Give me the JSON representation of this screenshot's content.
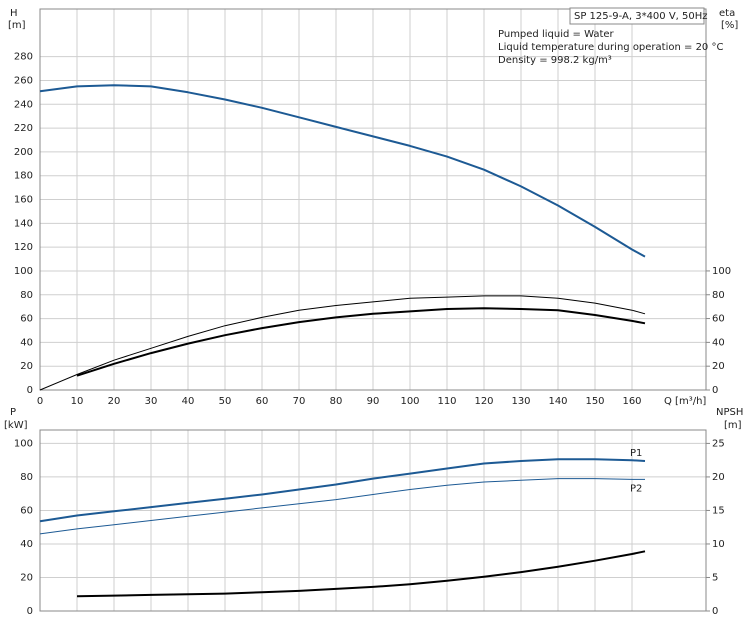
{
  "chart_data": [
    {
      "type": "line",
      "title": "SP 125-9-A, 3*400 V, 50Hz",
      "annotations": [
        "Pumped liquid = Water",
        "Liquid temperature during operation = 20 °C",
        "Density = 998.2 kg/m³"
      ],
      "ylabel": "H",
      "yunit": "[m]",
      "y2label": "eta",
      "y2unit": "[%]",
      "xlabel": "Q [m³/h]",
      "x": [
        0,
        10,
        20,
        30,
        40,
        50,
        60,
        70,
        80,
        90,
        100,
        110,
        120,
        130,
        140,
        150,
        160,
        163.5
      ],
      "xlim": [
        0,
        180
      ],
      "xticks": [
        0,
        10,
        20,
        30,
        40,
        50,
        60,
        70,
        80,
        90,
        100,
        110,
        120,
        130,
        140,
        150,
        160
      ],
      "ylim": [
        0,
        320
      ],
      "yticks": [
        0,
        20,
        40,
        60,
        80,
        100,
        120,
        140,
        160,
        180,
        200,
        220,
        240,
        260,
        280
      ],
      "y2lim": [
        0,
        320
      ],
      "y2ticks": [
        0,
        20,
        40,
        60,
        80,
        100
      ],
      "grid": true,
      "series": [
        {
          "color": "#1d5a94",
          "line_width": 2,
          "values": [
            251,
            255,
            256,
            255,
            250,
            244,
            237,
            229,
            221,
            213,
            205,
            196,
            185,
            171,
            155,
            137,
            118,
            112
          ]
        },
        {
          "color": "#000000",
          "line_width": 1,
          "axis": "y2",
          "values": [
            0,
            13,
            25,
            35,
            45,
            54,
            61,
            67,
            71,
            74,
            77,
            78,
            79,
            79,
            77,
            73,
            67,
            64
          ]
        },
        {
          "color": "#000000",
          "line_width": 2,
          "axis": "y2",
          "values": [
            null,
            12,
            22,
            31,
            39,
            46,
            52,
            57,
            61,
            64,
            66,
            68,
            68.7,
            68,
            67,
            63,
            58,
            56
          ]
        }
      ]
    },
    {
      "type": "line",
      "ylabel": "P",
      "yunit": "[kW]",
      "y2label": "NPSH",
      "y2unit": "[m]",
      "x": [
        0,
        10,
        20,
        30,
        40,
        50,
        60,
        70,
        80,
        90,
        100,
        110,
        120,
        130,
        140,
        150,
        160,
        163.5
      ],
      "xlim": [
        0,
        180
      ],
      "ylim": [
        0,
        108
      ],
      "yticks": [
        0,
        20,
        40,
        60,
        80,
        100
      ],
      "y2lim": [
        0,
        27
      ],
      "y2ticks": [
        0,
        5,
        10,
        15,
        20,
        25
      ],
      "grid": true,
      "series": [
        {
          "name": "P1",
          "color": "#1d5a94",
          "line_width": 2,
          "values": [
            53.6,
            57,
            59.5,
            62,
            64.5,
            67,
            69.5,
            72.5,
            75.5,
            79,
            82,
            85,
            88,
            89.5,
            90.5,
            90.5,
            90,
            89.5
          ]
        },
        {
          "name": "P2",
          "color": "#1d5a94",
          "line_width": 1,
          "values": [
            46,
            49,
            51.5,
            54,
            56.5,
            59,
            61.5,
            64,
            66.5,
            69.5,
            72.5,
            75,
            77,
            78,
            79,
            79,
            78.5,
            78.5
          ]
        },
        {
          "color": "#000000",
          "line_width": 2,
          "axis": "y2",
          "values": [
            null,
            2.2,
            2.3,
            2.4,
            2.5,
            2.6,
            2.8,
            3.0,
            3.3,
            3.6,
            4.0,
            4.5,
            5.1,
            5.8,
            6.6,
            7.5,
            8.5,
            8.9
          ]
        }
      ]
    }
  ]
}
